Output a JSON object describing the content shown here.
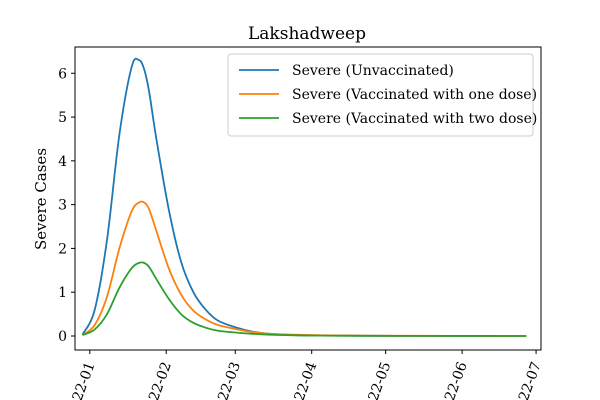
{
  "chart_data": {
    "type": "line",
    "title": "Lakshadweep",
    "xlabel": "",
    "ylabel": "Severe Cases",
    "xlim": [
      "2021-12-26",
      "2022-07-03"
    ],
    "ylim": [
      -0.32,
      6.6
    ],
    "x_ticks": [
      "2022-01-01",
      "2022-02-01",
      "2022-03-01",
      "2022-04-01",
      "2022-05-01",
      "2022-06-01",
      "2022-07-01"
    ],
    "x_tick_labels": [
      "22-01",
      "22-02",
      "22-03",
      "22-04",
      "22-05",
      "22-06",
      "22-07"
    ],
    "y_ticks": [
      0,
      1,
      2,
      3,
      4,
      5,
      6
    ],
    "y_tick_labels": [
      "0",
      "1",
      "2",
      "3",
      "4",
      "5",
      "6"
    ],
    "grid": false,
    "legend_position": "top-right",
    "x": [
      "2021-12-29",
      "2022-01-03",
      "2022-01-08",
      "2022-01-13",
      "2022-01-18",
      "2022-01-21",
      "2022-01-23",
      "2022-01-25",
      "2022-01-28",
      "2022-02-02",
      "2022-02-07",
      "2022-02-12",
      "2022-02-17",
      "2022-02-22",
      "2022-03-01",
      "2022-03-08",
      "2022-03-15",
      "2022-03-25",
      "2022-04-05",
      "2022-04-20",
      "2022-05-10",
      "2022-06-01",
      "2022-06-27"
    ],
    "series": [
      {
        "name": "Severe (Unvaccinated)",
        "color": "#1f77b4",
        "values": [
          0.03,
          0.6,
          2.2,
          4.6,
          6.15,
          6.3,
          6.1,
          5.6,
          4.5,
          2.9,
          1.7,
          1.0,
          0.6,
          0.35,
          0.2,
          0.1,
          0.05,
          0.02,
          0.01,
          0.005,
          0.002,
          0.001,
          0.0
        ]
      },
      {
        "name": "Severe (Vaccinated with one dose)",
        "color": "#ff7f0e",
        "values": [
          0.02,
          0.25,
          0.9,
          2.0,
          2.85,
          3.05,
          3.05,
          2.9,
          2.4,
          1.55,
          0.95,
          0.58,
          0.38,
          0.25,
          0.16,
          0.09,
          0.05,
          0.03,
          0.015,
          0.008,
          0.004,
          0.002,
          0.0
        ]
      },
      {
        "name": "Severe (Vaccinated with two dose)",
        "color": "#2ca02c",
        "values": [
          0.02,
          0.15,
          0.5,
          1.1,
          1.55,
          1.67,
          1.67,
          1.58,
          1.3,
          0.85,
          0.5,
          0.3,
          0.19,
          0.12,
          0.08,
          0.05,
          0.03,
          0.015,
          0.008,
          0.004,
          0.002,
          0.001,
          0.0
        ]
      }
    ]
  }
}
